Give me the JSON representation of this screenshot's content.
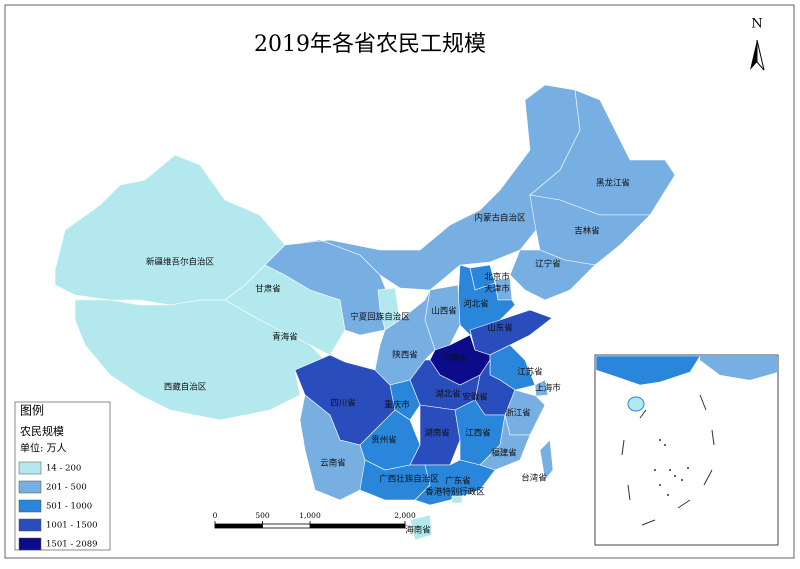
{
  "title": "2019年各省农民工规模",
  "north": "N",
  "legend": {
    "title": "图例",
    "subtitle": "农民规模",
    "unit": "单位: 万人",
    "classes": [
      {
        "label": "14 - 200",
        "color": "#b3e9ee"
      },
      {
        "label": "201 - 500",
        "color": "#77afe3"
      },
      {
        "label": "501 - 1000",
        "color": "#2a86db"
      },
      {
        "label": "1001 - 1500",
        "color": "#2a4dbd"
      },
      {
        "label": "1501 - 2089",
        "color": "#0c0c8a"
      }
    ]
  },
  "scale_bar": {
    "ticks": [
      0,
      500,
      {
        "value": 1000,
        "label": "1,000"
      },
      {
        "value": 2000,
        "label": "2,000"
      }
    ]
  },
  "regions": [
    {
      "name": "新疆维吾尔自治区",
      "color": "#b3e9ee"
    },
    {
      "name": "西藏自治区",
      "color": "#b3e9ee"
    },
    {
      "name": "青海省",
      "color": "#b3e9ee"
    },
    {
      "name": "甘肃省",
      "color": "#77afe3"
    },
    {
      "name": "宁夏回族自治区",
      "color": "#b3e9ee"
    },
    {
      "name": "内蒙古自治区",
      "color": "#77afe3"
    },
    {
      "name": "黑龙江省",
      "color": "#77afe3"
    },
    {
      "name": "吉林省",
      "color": "#77afe3"
    },
    {
      "name": "辽宁省",
      "color": "#77afe3"
    },
    {
      "name": "北京市",
      "color": "#2a86db"
    },
    {
      "name": "天津市",
      "color": "#77afe3"
    },
    {
      "name": "河北省",
      "color": "#2a86db"
    },
    {
      "name": "山西省",
      "color": "#77afe3"
    },
    {
      "name": "陕西省",
      "color": "#77afe3"
    },
    {
      "name": "山东省",
      "color": "#2a4dbd"
    },
    {
      "name": "河南省",
      "color": "#0c0c8a"
    },
    {
      "name": "江苏省",
      "color": "#2a86db"
    },
    {
      "name": "上海市",
      "color": "#77afe3"
    },
    {
      "name": "安徽省",
      "color": "#2a4dbd"
    },
    {
      "name": "湖北省",
      "color": "#2a4dbd"
    },
    {
      "name": "浙江省",
      "color": "#77afe3"
    },
    {
      "name": "四川省",
      "color": "#2a4dbd"
    },
    {
      "name": "重庆市",
      "color": "#2a86db"
    },
    {
      "name": "贵州省",
      "color": "#2a86db"
    },
    {
      "name": "湖南省",
      "color": "#2a4dbd"
    },
    {
      "name": "江西省",
      "color": "#2a86db"
    },
    {
      "name": "福建省",
      "color": "#77afe3"
    },
    {
      "name": "云南省",
      "color": "#77afe3"
    },
    {
      "name": "广西壮族自治区",
      "color": "#2a86db"
    },
    {
      "name": "广东省",
      "color": "#2a86db"
    },
    {
      "name": "海南省",
      "color": "#b3e9ee"
    },
    {
      "name": "台湾省",
      "color": "#77afe3"
    },
    {
      "name": "香港特别行政区",
      "color": "#b3e9ee"
    }
  ]
}
